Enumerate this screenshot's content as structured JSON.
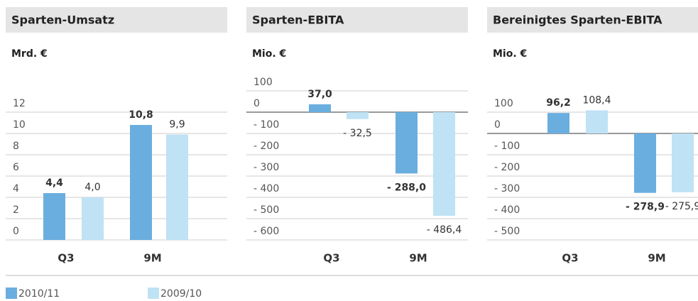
{
  "chart_data": [
    {
      "type": "bar",
      "title": "Sparten-Umsatz",
      "y_label": "Mrd. €",
      "categories": [
        "Q3",
        "9M"
      ],
      "series": [
        {
          "name": "2010/11",
          "color": "#6aaedf",
          "values": [
            4.4,
            10.8
          ],
          "value_labels": [
            "4,4",
            "10,8"
          ]
        },
        {
          "name": "2009/10",
          "color": "#bfe2f4",
          "values": [
            4.0,
            9.9
          ],
          "value_labels": [
            "4,0",
            "9,9"
          ]
        }
      ],
      "ylim": [
        0,
        12
      ],
      "yticks": [
        0,
        2,
        4,
        6,
        8,
        10,
        12
      ],
      "grid": true
    },
    {
      "type": "bar",
      "title": "Sparten-EBITA",
      "y_label": "Mio. €",
      "categories": [
        "Q3",
        "9M"
      ],
      "series": [
        {
          "color": "#6aaedf",
          "values": [
            37.0,
            -288.0
          ],
          "value_labels": [
            "37,0",
            "- 288,0"
          ]
        },
        {
          "color": "#bfe2f4",
          "values": [
            -32.5,
            -486.4
          ],
          "value_labels": [
            "- 32,5",
            "- 486,4"
          ]
        }
      ],
      "ylim": [
        -600,
        100
      ],
      "yticks": [
        {
          "value": -600,
          "label": "- 600"
        },
        {
          "value": -500,
          "label": "- 500"
        },
        {
          "value": -400,
          "label": "- 400"
        },
        {
          "value": -300,
          "label": "- 300"
        },
        {
          "value": -200,
          "label": "- 200"
        },
        {
          "value": -100,
          "label": "- 100"
        },
        0,
        100
      ],
      "grid": true
    },
    {
      "type": "bar",
      "title": "Bereinigtes Sparten-EBITA",
      "y_label": "Mio. €",
      "categories": [
        "Q3",
        "9M"
      ],
      "series": [
        {
          "color": "#6aaedf",
          "values": [
            96.2,
            -278.9
          ],
          "value_labels": [
            "96,2",
            "- 278,9"
          ]
        },
        {
          "color": "#bfe2f4",
          "values": [
            108.4,
            -275.9
          ],
          "value_labels": [
            "108,4",
            "- 275,9"
          ]
        }
      ],
      "ylim": [
        -500,
        100
      ],
      "yticks": [
        {
          "value": -500,
          "label": "- 500"
        },
        {
          "value": -400,
          "label": "- 400"
        },
        {
          "value": -300,
          "label": "- 300"
        },
        {
          "value": -200,
          "label": "- 200"
        },
        {
          "value": -100,
          "label": "- 100"
        },
        0,
        100
      ],
      "grid": true
    }
  ]
}
